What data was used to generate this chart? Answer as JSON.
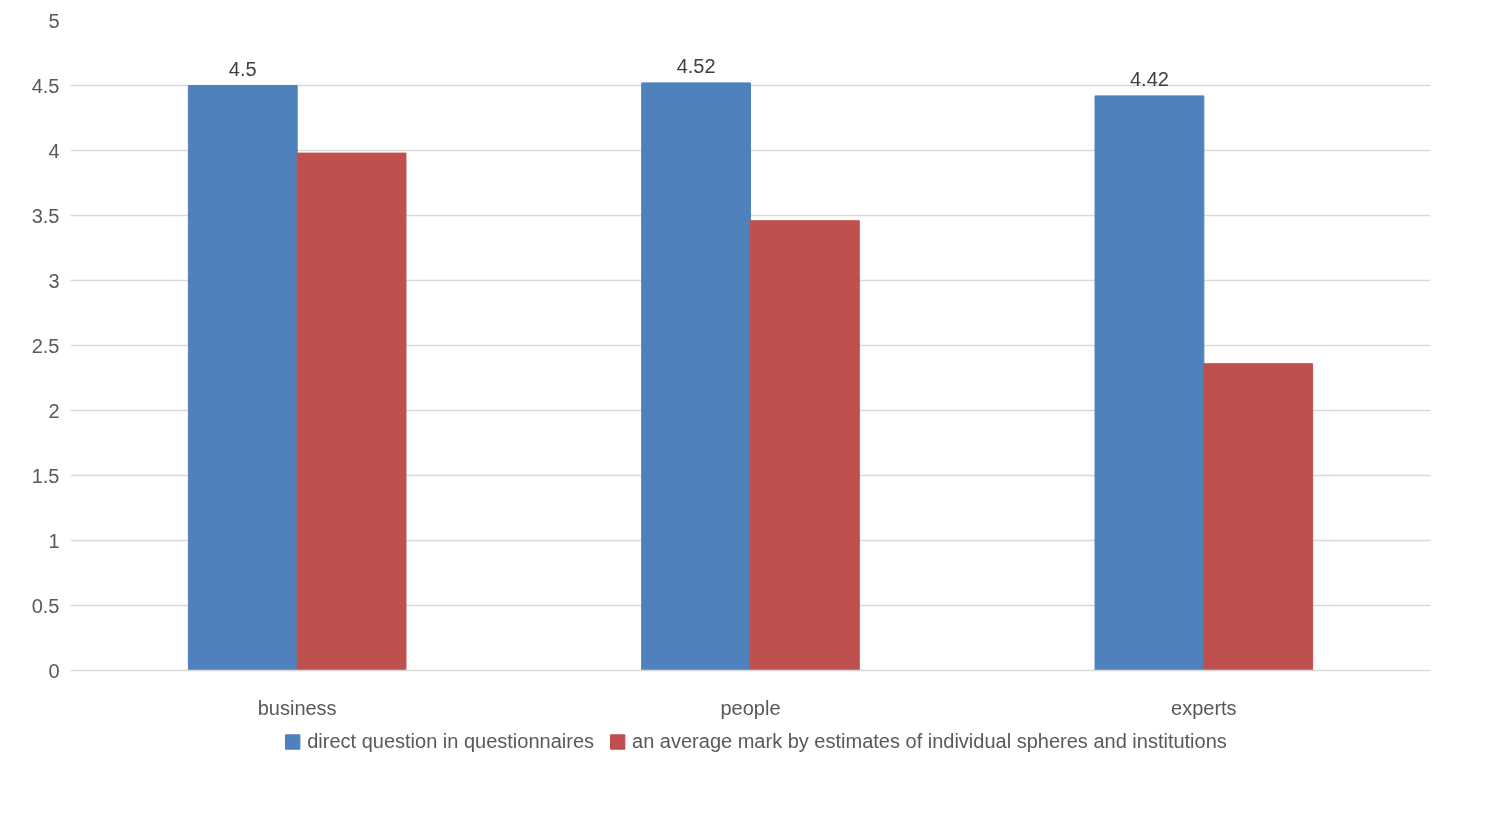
{
  "chart_data": {
    "type": "bar",
    "categories": [
      "business",
      "people",
      "experts"
    ],
    "series": [
      {
        "name": "direct question in questionnaires",
        "color": "#4f81bd",
        "values": [
          4.5,
          4.52,
          4.42
        ],
        "value_labels": [
          "4.5",
          "4.52",
          "4.42"
        ]
      },
      {
        "name": "an average mark by estimates of individual spheres and institutions",
        "color": "#c0504d",
        "values": [
          3.98,
          3.46,
          2.36
        ]
      }
    ],
    "ylim": [
      0,
      5
    ],
    "yticks": [
      0,
      0.5,
      1,
      1.5,
      2,
      2.5,
      3,
      3.5,
      4,
      4.5,
      5
    ],
    "grid": "y",
    "legend": "bottom"
  }
}
